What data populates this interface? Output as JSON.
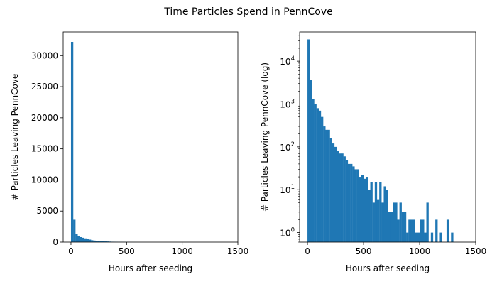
{
  "figure": {
    "title": "Time Particles Spend in PennCove"
  },
  "chart_data": [
    {
      "type": "bar",
      "subtype": "histogram",
      "title": "",
      "xlabel": "Hours after seeding",
      "ylabel": "# Particles Leaving PennCove",
      "xlim": [
        -70,
        1500
      ],
      "ylim": [
        0,
        33800
      ],
      "yscale": "linear",
      "xticks": [
        0,
        500,
        1000,
        1500
      ],
      "xtick_labels": [
        "0",
        "500",
        "1000",
        "1500"
      ],
      "yticks": [
        0,
        5000,
        10000,
        15000,
        20000,
        25000,
        30000
      ],
      "ytick_labels": [
        "0",
        "5000",
        "10000",
        "15000",
        "20000",
        "25000",
        "30000"
      ],
      "bar_color": "#1f77b4",
      "bin_width": 20,
      "bin_start": 0,
      "values": [
        32200,
        3600,
        1300,
        1000,
        800,
        700,
        600,
        500,
        400,
        300,
        250,
        200,
        180,
        150,
        130,
        110,
        100,
        80,
        60,
        50,
        40,
        30,
        25,
        20,
        15,
        12,
        10,
        8,
        6,
        5
      ]
    },
    {
      "type": "bar",
      "subtype": "histogram",
      "title": "",
      "xlabel": "Hours after seeding",
      "ylabel": "# Particles Leaving PennCove (log)",
      "xlim": [
        -70,
        1500
      ],
      "ylim": [
        0.6,
        48000
      ],
      "yscale": "log",
      "xticks": [
        0,
        500,
        1000,
        1500
      ],
      "xtick_labels": [
        "0",
        "500",
        "1000",
        "1500"
      ],
      "yticks": [
        1,
        10,
        100,
        1000,
        10000
      ],
      "ytick_labels": [
        "10^0",
        "10^1",
        "10^2",
        "10^3",
        "10^4"
      ],
      "bar_color": "#1f77b4",
      "bin_width": 20,
      "bin_start": 0,
      "values": [
        32200,
        3600,
        1300,
        1000,
        800,
        700,
        500,
        300,
        250,
        250,
        160,
        120,
        100,
        80,
        70,
        70,
        60,
        50,
        40,
        40,
        35,
        30,
        30,
        20,
        22,
        18,
        20,
        10,
        15,
        5,
        15,
        6,
        15,
        5,
        12,
        10,
        3,
        3,
        5,
        5,
        2,
        5,
        3,
        3,
        1,
        2,
        2,
        2,
        1,
        1,
        2,
        2,
        1,
        5,
        0,
        1,
        0,
        2,
        0,
        1,
        0,
        0,
        2,
        0,
        1,
        0,
        0,
        0,
        0,
        0,
        0
      ]
    }
  ]
}
